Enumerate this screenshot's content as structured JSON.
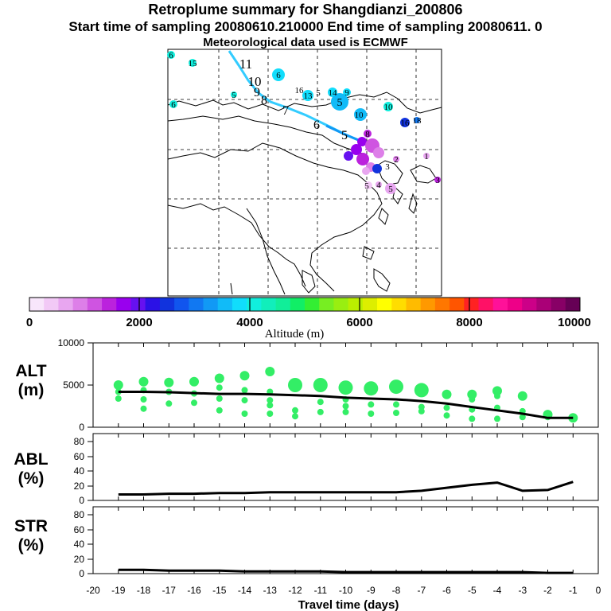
{
  "header": {
    "title": "Retroplume summary for Shangdianzi_200806",
    "sampling": "Start time of sampling 20080610.210000     End time of sampling 20080611.     0",
    "met": "Meteorological data used is ECMWF"
  },
  "colors": {
    "points": "#33ee66",
    "line": "#000000",
    "track": "#33ccff"
  },
  "colorbar": {
    "ticks": [
      "0",
      "2000",
      "4000",
      "6000",
      "8000",
      "10000"
    ],
    "label": "Altitude (m)",
    "colors": [
      "#f8e6fb",
      "#f2c9f6",
      "#e8a6f0",
      "#dd7fe8",
      "#cf54e1",
      "#bb22dd",
      "#9900ee",
      "#6611f0",
      "#2b11e6",
      "#1133dd",
      "#1155ee",
      "#1178f2",
      "#1199f5",
      "#11bbf8",
      "#11ddfc",
      "#11eedd",
      "#11eebb",
      "#11ee99",
      "#11ee66",
      "#33ee33",
      "#77ee22",
      "#99ee11",
      "#bbee00",
      "#ddee00",
      "#ffff00",
      "#ffdd00",
      "#ffbb00",
      "#ff9900",
      "#ff7700",
      "#ff5500",
      "#ff2222",
      "#ff1166",
      "#ff1199",
      "#ee0088",
      "#cc0088",
      "#aa0077",
      "#880066",
      "#660055"
    ]
  },
  "map": {
    "track_labels": [
      "11",
      "10",
      "9",
      "8",
      "7",
      "6",
      "5"
    ],
    "cluster_labels": [
      "6",
      "15",
      "6",
      "5",
      "6",
      "16",
      "13",
      "5",
      "14",
      "9",
      "5",
      "10",
      "10",
      "18",
      "16",
      "8",
      "3",
      "2",
      "5",
      "4",
      "1",
      "5",
      "3"
    ]
  },
  "panels": {
    "alt": {
      "label_line1": "ALT",
      "label_line2": "(m)",
      "yticks": [
        "10000",
        "5000",
        "0"
      ]
    },
    "abl": {
      "label_line1": "ABL",
      "label_line2": "(%)",
      "yticks": [
        "80",
        "60",
        "40",
        "20",
        "0"
      ]
    },
    "str": {
      "label_line1": "STR",
      "label_line2": "(%)",
      "yticks": [
        "80",
        "60",
        "40",
        "20",
        "0"
      ]
    }
  },
  "xaxis": {
    "ticks": [
      "-20",
      "-19",
      "-18",
      "-17",
      "-16",
      "-15",
      "-14",
      "-13",
      "-12",
      "-11",
      "-10",
      "-9",
      "-8",
      "-7",
      "-6",
      "-5",
      "-4",
      "-3",
      "-2",
      "-1",
      "0"
    ],
    "label": "Travel time (days)"
  },
  "chart_data": [
    {
      "type": "scatter",
      "title": "ALT (m)",
      "xlabel": "Travel time (days)",
      "ylabel": "Altitude (m)",
      "xlim": [
        -20,
        0
      ],
      "ylim": [
        0,
        10000
      ],
      "x": [
        -19,
        -18,
        -17,
        -16,
        -15,
        -14,
        -13,
        -12,
        -11,
        -10,
        -9,
        -8,
        -7,
        -6,
        -5,
        -4,
        -3,
        -2,
        -1
      ],
      "mean_altitude": [
        4200,
        4200,
        4150,
        4050,
        3950,
        3950,
        3900,
        3800,
        3700,
        3500,
        3400,
        3300,
        3100,
        2800,
        2400,
        2000,
        1600,
        1100,
        1100
      ],
      "cluster_altitudes": [
        [
          5000,
          4200,
          3400
        ],
        [
          5400,
          4400,
          3300,
          2200
        ],
        [
          5300,
          4200,
          2800
        ],
        [
          5400,
          4000,
          2900
        ],
        [
          5800,
          4700,
          3400,
          2000
        ],
        [
          6100,
          4400,
          3200,
          1600
        ],
        [
          6600,
          4200,
          3200,
          2600,
          1600
        ],
        [
          5000,
          2000,
          1300
        ],
        [
          5000,
          3000,
          1800
        ],
        [
          4700,
          3300,
          2500,
          1800
        ],
        [
          4600,
          2700,
          1600
        ],
        [
          4800,
          2700,
          1700
        ],
        [
          4400,
          2400,
          1900
        ],
        [
          3900,
          2300,
          1400
        ],
        [
          3900,
          3300,
          2100,
          1000
        ],
        [
          4300,
          3700,
          2300,
          1000
        ],
        [
          3700,
          1900,
          1200
        ],
        [
          1500,
          1200
        ],
        [
          1100
        ]
      ]
    },
    {
      "type": "line",
      "title": "ABL (%)",
      "xlim": [
        -20,
        0
      ],
      "ylim": [
        0,
        90
      ],
      "x": [
        -19,
        -18,
        -17,
        -16,
        -15,
        -14,
        -13,
        -12,
        -11,
        -10,
        -9,
        -8,
        -7,
        -6,
        -5,
        -4,
        -3,
        -2,
        -1
      ],
      "values": [
        8,
        8,
        9,
        9,
        10,
        10,
        11,
        11,
        11,
        11,
        11,
        11,
        13,
        17,
        21,
        24,
        13,
        14,
        25
      ]
    },
    {
      "type": "line",
      "title": "STR (%)",
      "xlim": [
        -20,
        0
      ],
      "ylim": [
        0,
        90
      ],
      "x": [
        -19,
        -18,
        -17,
        -16,
        -15,
        -14,
        -13,
        -12,
        -11,
        -10,
        -9,
        -8,
        -7,
        -6,
        -5,
        -4,
        -3,
        -2,
        -1
      ],
      "values": [
        5,
        5,
        4,
        4,
        4,
        3,
        3,
        3,
        3,
        2,
        2,
        2,
        2,
        2,
        2,
        2,
        2,
        1,
        1
      ]
    }
  ]
}
